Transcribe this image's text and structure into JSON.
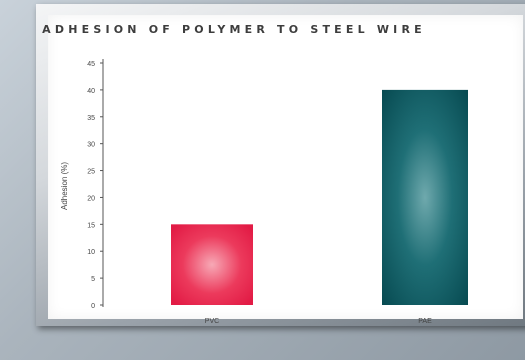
{
  "chart_data": {
    "type": "bar",
    "title": "ADHESION OF POLYMER TO STEEL WIRE",
    "xlabel": "",
    "ylabel": "Adhesion (%)",
    "categories": [
      "PVC",
      "PAE"
    ],
    "values": [
      15,
      40
    ],
    "ylim": [
      0,
      45
    ],
    "yticks": [
      "0",
      "5",
      "10",
      "15",
      "20",
      "25",
      "30",
      "35",
      "40",
      "45"
    ],
    "bar_colors": [
      "#e8294f",
      "#0d5f66"
    ],
    "grid": false,
    "legend": "none"
  }
}
